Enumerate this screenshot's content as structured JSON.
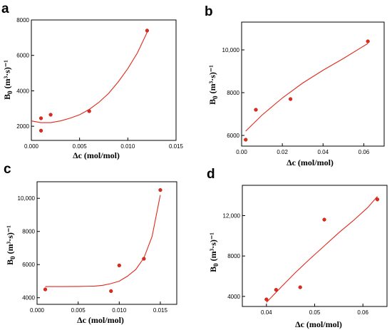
{
  "chart_data": [
    {
      "panel": "a",
      "type": "scatter",
      "xlabel": "Δc (mol/mol)",
      "ylabel_base": "B",
      "ylabel_sub": "0",
      "ylabel_unit": "(m³·s)⁻¹",
      "xlim": [
        0.0,
        0.015
      ],
      "ylim": [
        1200,
        8000
      ],
      "xticks": [
        0.0,
        0.005,
        0.01,
        0.015
      ],
      "xtick_labels": [
        "0.000",
        "0.005",
        "0.010",
        "0.015"
      ],
      "yticks": [
        2000,
        4000,
        6000,
        8000
      ],
      "ytick_labels": [
        "2000",
        "4000",
        "6000",
        "8000"
      ],
      "points": [
        [
          0.001,
          2450
        ],
        [
          0.001,
          1750
        ],
        [
          0.002,
          2650
        ],
        [
          0.006,
          2850
        ],
        [
          0.012,
          7400
        ]
      ],
      "fit": [
        [
          0.0,
          2300
        ],
        [
          0.001,
          2200
        ],
        [
          0.002,
          2200
        ],
        [
          0.003,
          2300
        ],
        [
          0.004,
          2450
        ],
        [
          0.005,
          2650
        ],
        [
          0.006,
          2950
        ],
        [
          0.007,
          3350
        ],
        [
          0.008,
          3850
        ],
        [
          0.009,
          4500
        ],
        [
          0.01,
          5250
        ],
        [
          0.011,
          6150
        ],
        [
          0.012,
          7300
        ]
      ]
    },
    {
      "panel": "b",
      "type": "scatter",
      "xlabel": "Δc (mol/mol)",
      "ylabel_base": "B",
      "ylabel_sub": "0",
      "ylabel_unit": "(m³·s)⁻¹",
      "xlim": [
        0.0,
        0.07
      ],
      "ylim": [
        5500,
        11300
      ],
      "xticks": [
        0.0,
        0.02,
        0.04,
        0.06
      ],
      "xtick_labels": [
        "0.00",
        "0.02",
        "0.04",
        "0.06"
      ],
      "yticks": [
        6000,
        8000,
        10000
      ],
      "ytick_labels": [
        "6000",
        "8000",
        "10,000"
      ],
      "points": [
        [
          0.002,
          5800
        ],
        [
          0.007,
          7200
        ],
        [
          0.024,
          7700
        ],
        [
          0.062,
          10400
        ]
      ],
      "fit": [
        [
          0.002,
          6200
        ],
        [
          0.01,
          6950
        ],
        [
          0.02,
          7750
        ],
        [
          0.03,
          8450
        ],
        [
          0.04,
          9050
        ],
        [
          0.05,
          9600
        ],
        [
          0.062,
          10300
        ]
      ]
    },
    {
      "panel": "c",
      "type": "scatter",
      "xlabel": "Δc (mol/mol)",
      "ylabel_base": "B",
      "ylabel_sub": "0",
      "ylabel_unit": "(m³·s)⁻¹",
      "xlim": [
        0.0,
        0.017
      ],
      "ylim": [
        3600,
        11000
      ],
      "xticks": [
        0.0,
        0.005,
        0.01,
        0.015
      ],
      "xtick_labels": [
        "0.000",
        "0.005",
        "0.010",
        "0.015"
      ],
      "yticks": [
        4000,
        6000,
        8000,
        10000
      ],
      "ytick_labels": [
        "4000",
        "6000",
        "8000",
        "10,000"
      ],
      "points": [
        [
          0.001,
          4500
        ],
        [
          0.009,
          4400
        ],
        [
          0.01,
          5950
        ],
        [
          0.013,
          6350
        ],
        [
          0.015,
          10500
        ]
      ],
      "fit": [
        [
          0.001,
          4670
        ],
        [
          0.003,
          4670
        ],
        [
          0.005,
          4680
        ],
        [
          0.007,
          4700
        ],
        [
          0.008,
          4750
        ],
        [
          0.009,
          4850
        ],
        [
          0.01,
          5000
        ],
        [
          0.011,
          5300
        ],
        [
          0.012,
          5700
        ],
        [
          0.013,
          6400
        ],
        [
          0.014,
          7700
        ],
        [
          0.015,
          10200
        ]
      ]
    },
    {
      "panel": "d",
      "type": "scatter",
      "xlabel": "Δc (mol/mol)",
      "ylabel_base": "B",
      "ylabel_sub": "0",
      "ylabel_unit": "(m³·s)⁻¹",
      "xlim": [
        0.035,
        0.065
      ],
      "ylim": [
        3000,
        15000
      ],
      "xticks": [
        0.04,
        0.05,
        0.06
      ],
      "xtick_labels": [
        "0.04",
        "0.05",
        "0.06"
      ],
      "yticks": [
        4000,
        8000,
        12000
      ],
      "ytick_labels": [
        "4000",
        "8000",
        "12,000"
      ],
      "points": [
        [
          0.04,
          3700
        ],
        [
          0.042,
          4650
        ],
        [
          0.047,
          4900
        ],
        [
          0.052,
          11600
        ],
        [
          0.063,
          13600
        ]
      ],
      "fit": [
        [
          0.04,
          3400
        ],
        [
          0.043,
          4900
        ],
        [
          0.046,
          6350
        ],
        [
          0.049,
          7700
        ],
        [
          0.052,
          9000
        ],
        [
          0.055,
          10300
        ],
        [
          0.058,
          11500
        ],
        [
          0.061,
          12800
        ],
        [
          0.063,
          13900
        ]
      ]
    }
  ]
}
